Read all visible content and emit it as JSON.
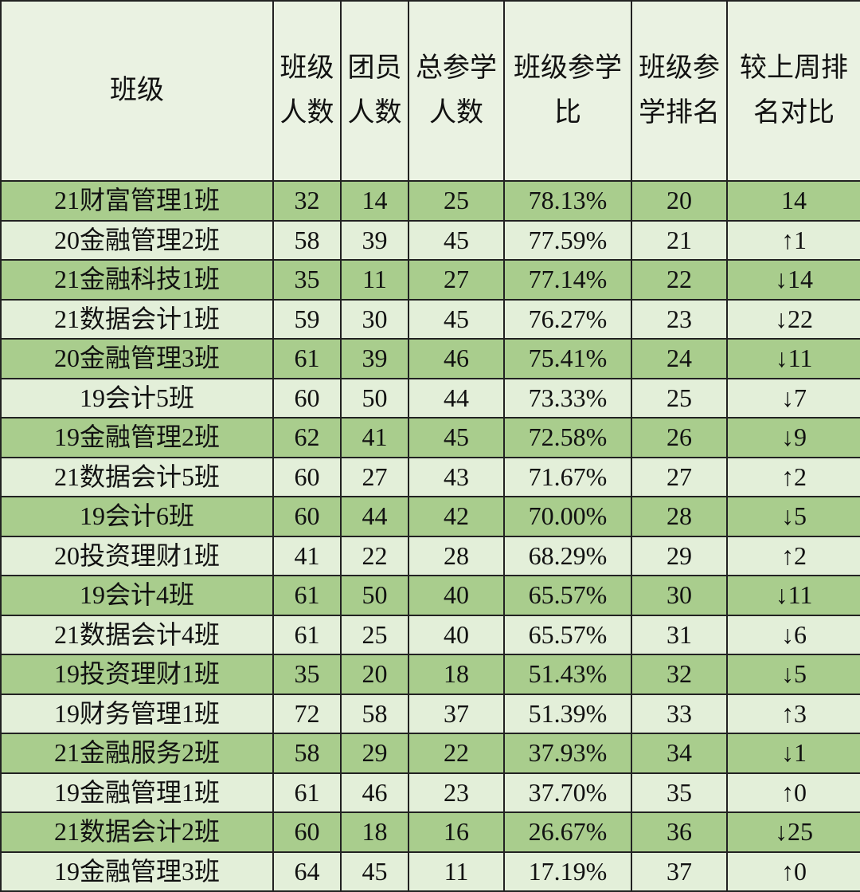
{
  "table": {
    "headers": [
      "班级",
      "班级人数",
      "团员人数",
      "总参学人数",
      "班级参学比",
      "班级参学排名",
      "较上周排名对比"
    ],
    "rows": [
      [
        "21财富管理1班",
        32,
        14,
        25,
        "78.13%",
        20,
        "14"
      ],
      [
        "20金融管理2班",
        58,
        39,
        45,
        "77.59%",
        21,
        "↑1"
      ],
      [
        "21金融科技1班",
        35,
        11,
        27,
        "77.14%",
        22,
        "↓14"
      ],
      [
        "21数据会计1班",
        59,
        30,
        45,
        "76.27%",
        23,
        "↓22"
      ],
      [
        "20金融管理3班",
        61,
        39,
        46,
        "75.41%",
        24,
        "↓11"
      ],
      [
        "19会计5班",
        60,
        50,
        44,
        "73.33%",
        25,
        "↓7"
      ],
      [
        "19金融管理2班",
        62,
        41,
        45,
        "72.58%",
        26,
        "↓9"
      ],
      [
        "21数据会计5班",
        60,
        27,
        43,
        "71.67%",
        27,
        "↑2"
      ],
      [
        "19会计6班",
        60,
        44,
        42,
        "70.00%",
        28,
        "↓5"
      ],
      [
        "20投资理财1班",
        41,
        22,
        28,
        "68.29%",
        29,
        "↑2"
      ],
      [
        "19会计4班",
        61,
        50,
        40,
        "65.57%",
        30,
        "↓11"
      ],
      [
        "21数据会计4班",
        61,
        25,
        40,
        "65.57%",
        31,
        "↓6"
      ],
      [
        "19投资理财1班",
        35,
        20,
        18,
        "51.43%",
        32,
        "↓5"
      ],
      [
        "19财务管理1班",
        72,
        58,
        37,
        "51.39%",
        33,
        "↑3"
      ],
      [
        "21金融服务2班",
        58,
        29,
        22,
        "37.93%",
        34,
        "↓1"
      ],
      [
        "19金融管理1班",
        61,
        46,
        23,
        "37.70%",
        35,
        "↑0"
      ],
      [
        "21数据会计2班",
        60,
        18,
        16,
        "26.67%",
        36,
        "↓25"
      ],
      [
        "19金融管理3班",
        64,
        45,
        11,
        "17.19%",
        37,
        "↑0"
      ]
    ]
  }
}
